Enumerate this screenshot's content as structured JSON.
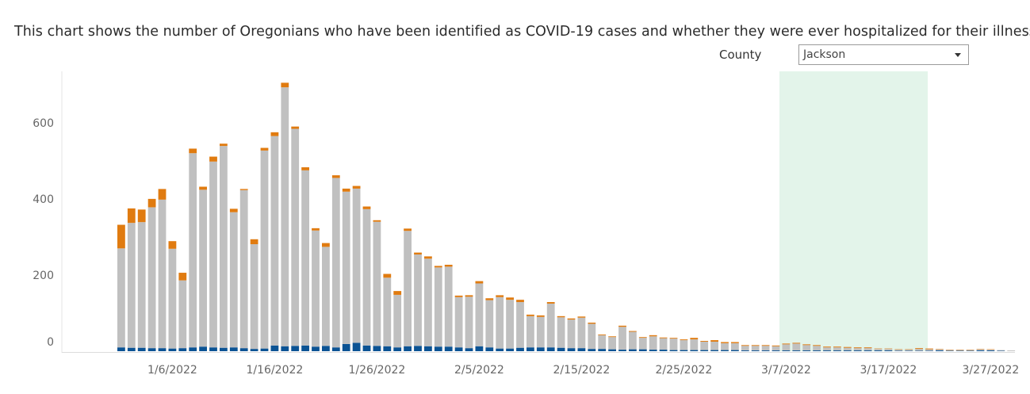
{
  "header": {
    "title": "This chart shows the number of Oregonians who have been identified as COVID-19 cases and whether they were ever hospitalized for their illness ‡"
  },
  "filter": {
    "label": "County",
    "selected": "Jackson"
  },
  "colors": {
    "hospitalized": "#0b5394",
    "not_hospitalized": "#c0c0c0",
    "unknown": "#e07b10",
    "shade": "#e3f4ea",
    "background": "#ffffff"
  },
  "chart_data": {
    "type": "bar",
    "stacked": true,
    "x_start": "2022-01-01",
    "x_end": "2022-03-28",
    "yticks": [
      0,
      200,
      400,
      600
    ],
    "ylim": [
      0,
      740
    ],
    "xticks": [
      "1/6/2022",
      "1/16/2022",
      "1/26/2022",
      "2/5/2022",
      "2/15/2022",
      "2/25/2022",
      "3/7/2022",
      "3/17/2022",
      "3/27/2022"
    ],
    "shaded_region": {
      "from": "2022-03-07",
      "to": "2022-03-21"
    },
    "series": [
      {
        "key": "hospitalized",
        "values": [
          10,
          9,
          9,
          8,
          8,
          7,
          8,
          10,
          12,
          10,
          9,
          10,
          8,
          6,
          7,
          15,
          13,
          14,
          15,
          12,
          14,
          10,
          19,
          22,
          15,
          14,
          13,
          10,
          13,
          14,
          13,
          12,
          12,
          10,
          8,
          13,
          10,
          7,
          7,
          9,
          10,
          10,
          10,
          9,
          8,
          8,
          6,
          6,
          5,
          4,
          5,
          5,
          4,
          4,
          3,
          3,
          3,
          3,
          3,
          3,
          3,
          2,
          2,
          2,
          2,
          2,
          2,
          2,
          2,
          2,
          2,
          2,
          2,
          2,
          2,
          2,
          1,
          1,
          1,
          1,
          2,
          1,
          1,
          1,
          2,
          2,
          1,
          0
        ]
      },
      {
        "key": "not_hospitalized",
        "values": [
          260,
          328,
          330,
          370,
          390,
          262,
          178,
          510,
          412,
          488,
          530,
          355,
          415,
          275,
          520,
          550,
          680,
          570,
          460,
          305,
          260,
          445,
          400,
          405,
          358,
          326,
          180,
          138,
          303,
          240,
          230,
          208,
          210,
          132,
          135,
          165,
          124,
          135,
          128,
          120,
          82,
          80,
          115,
          80,
          75,
          80,
          66,
          36,
          32,
          60,
          46,
          30,
          35,
          30,
          30,
          26,
          28,
          22,
          22,
          18,
          18,
          12,
          12,
          12,
          11,
          16,
          18,
          14,
          12,
          8,
          8,
          7,
          6,
          6,
          4,
          4,
          3,
          3,
          5,
          4,
          3,
          2,
          2,
          2,
          3,
          2,
          2,
          2
        ]
      },
      {
        "key": "unknown",
        "values": [
          62,
          38,
          33,
          22,
          28,
          20,
          20,
          12,
          8,
          13,
          6,
          9,
          3,
          13,
          7,
          10,
          12,
          6,
          8,
          6,
          10,
          7,
          8,
          7,
          7,
          4,
          10,
          10,
          6,
          5,
          6,
          4,
          5,
          4,
          4,
          6,
          5,
          5,
          6,
          6,
          4,
          4,
          4,
          3,
          3,
          3,
          3,
          2,
          2,
          3,
          2,
          2,
          3,
          2,
          2,
          2,
          4,
          2,
          4,
          3,
          3,
          2,
          2,
          2,
          2,
          2,
          2,
          2,
          2,
          2,
          2,
          2,
          2,
          2,
          1,
          1,
          1,
          1,
          2,
          2,
          1,
          1,
          1,
          1,
          1,
          1,
          0,
          0
        ]
      }
    ]
  }
}
